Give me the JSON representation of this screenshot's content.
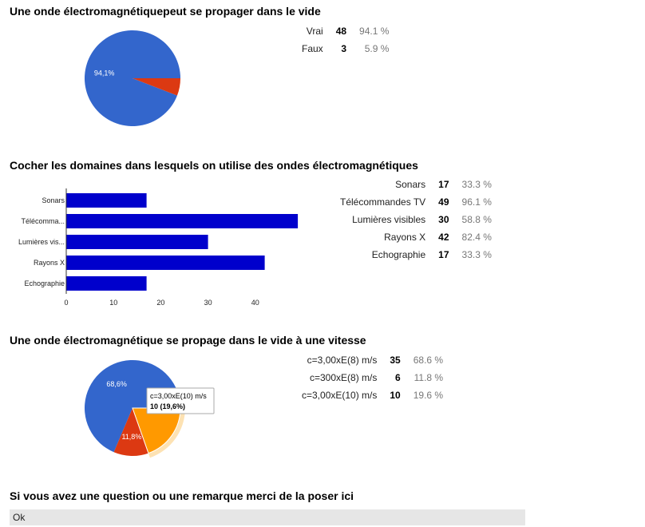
{
  "questions": [
    {
      "title": "Une onde électromagnétiquepeut se propager dans le vide",
      "rows": [
        {
          "label": "Vrai",
          "count": "48",
          "percent": "94.1 %"
        },
        {
          "label": "Faux",
          "count": "3",
          "percent": "5.9 %"
        }
      ]
    },
    {
      "title": "Cocher les domaines dans lesquels on utilise des ondes électromagnétiques",
      "rows": [
        {
          "label": "Sonars",
          "count": "17",
          "percent": "33.3 %"
        },
        {
          "label": "Télécommandes TV",
          "count": "49",
          "percent": "96.1 %"
        },
        {
          "label": "Lumières visibles",
          "count": "30",
          "percent": "58.8 %"
        },
        {
          "label": "Rayons X",
          "count": "42",
          "percent": "82.4 %"
        },
        {
          "label": "Echographie",
          "count": "17",
          "percent": "33.3 %"
        }
      ]
    },
    {
      "title": "Une onde électromagnétique se propage dans le vide à une vitesse",
      "rows": [
        {
          "label": "c=3,00xE(8) m/s",
          "count": "35",
          "percent": "68.6 %"
        },
        {
          "label": "c=300xE(8) m/s",
          "count": "6",
          "percent": "11.8 %"
        },
        {
          "label": "c=3,00xE(10) m/s",
          "count": "10",
          "percent": "19.6 %"
        }
      ]
    },
    {
      "title": "Si vous avez une question ou une remarque merci de la poser ici",
      "answer": "Ok"
    }
  ],
  "chart_data": [
    {
      "type": "pie",
      "categories": [
        "Vrai",
        "Faux"
      ],
      "values": [
        48,
        3
      ],
      "slice_labels": [
        "94,1%",
        ""
      ],
      "colors": [
        "#3366cc",
        "#dc3912"
      ]
    },
    {
      "type": "bar",
      "orientation": "horizontal",
      "categories": [
        "Sonars",
        "Télécomma...",
        "Lumières vis...",
        "Rayons X",
        "Echographie"
      ],
      "values": [
        17,
        49,
        30,
        42,
        17
      ],
      "xlim": [
        0,
        50
      ],
      "ticks": [
        "0",
        "10",
        "20",
        "30",
        "40"
      ],
      "color": "#0000cc"
    },
    {
      "type": "pie",
      "categories": [
        "c=3,00xE(8) m/s",
        "c=300xE(8) m/s",
        "c=3,00xE(10) m/s"
      ],
      "values": [
        35,
        6,
        10
      ],
      "slice_labels": [
        "68,6%",
        "11,8%",
        ""
      ],
      "colors": [
        "#3366cc",
        "#dc3912",
        "#ff9900"
      ],
      "highlighted_index": 2,
      "tooltip": {
        "label": "c=3,00xE(10) m/s",
        "value": "10 (19,6%)"
      }
    }
  ]
}
